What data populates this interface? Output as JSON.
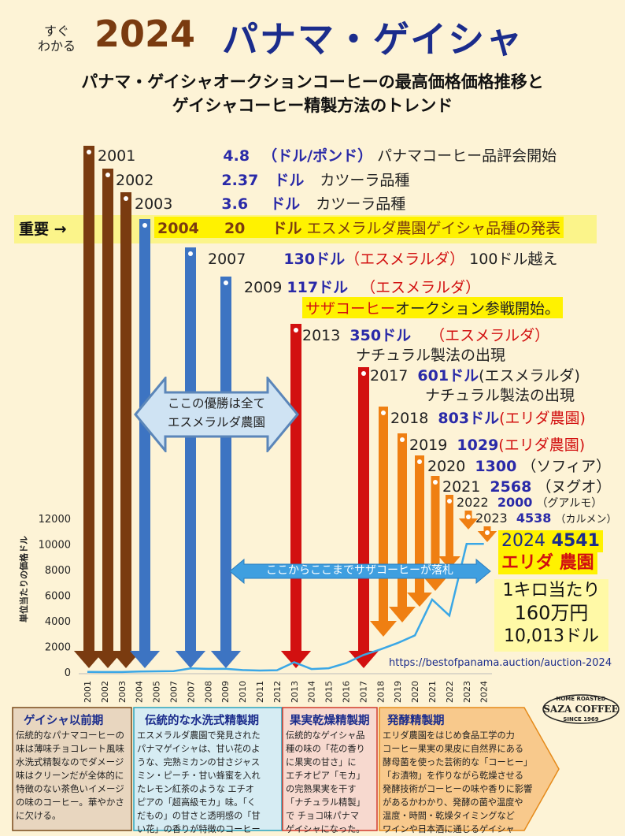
{
  "header": {
    "tagline_top": "すぐ",
    "tagline_bottom": "わかる",
    "year": "2024",
    "name": "パナマ・ゲイシャ",
    "subtitle_line1": "パナマ・ゲイシャオークションコーヒーの最高価格価格推移と",
    "subtitle_line2": "ゲイシャコーヒー精製方法のトレンド"
  },
  "important_label": "重要 →",
  "events": [
    {
      "year": "2001",
      "price": "4.8",
      "unit": "（ドル/ポンド）",
      "note": "パナマコーヒー品評会開始"
    },
    {
      "year": "2002",
      "price": "2.37",
      "unit": "ドル",
      "note": "カツーラ品種"
    },
    {
      "year": "2003",
      "price": "3.6",
      "unit": "ドル",
      "note": "カツーラ品種"
    },
    {
      "year": "2004",
      "price": "20",
      "unit": "ドル",
      "note": "エスメラルダ農園ゲイシャ品種の発表"
    },
    {
      "year": "2007",
      "price": "130ドル",
      "note_red": "（エスメラルダ）",
      "note": "100ドル越え"
    },
    {
      "year": "2009",
      "price": "117ドル",
      "note_red": "（エスメラルダ）"
    },
    {
      "year": "2013",
      "price": "350ドル",
      "note_red": "（エスメラルダ）",
      "note2": "ナチュラル製法の出現"
    },
    {
      "year": "2017",
      "price": "601ドル",
      "note": "(エスメラルダ)",
      "note2": "ナチュラル製法の出現"
    },
    {
      "year": "2018",
      "price": "803ドル",
      "note_red": "(エリダ農園)"
    },
    {
      "year": "2019",
      "price": "1029",
      "note_red": "(エリダ農園)"
    },
    {
      "year": "2020",
      "price": "1300",
      "note": "（ソフィア）"
    },
    {
      "year": "2021",
      "price": "2568",
      "note": "（ヌグオ）"
    },
    {
      "year": "2022",
      "price": "2000",
      "note": "（グアルモ）"
    },
    {
      "year": "2023",
      "price": "4538",
      "note": "（カルメン）"
    }
  ],
  "saza_start": {
    "name": "サザコーヒー",
    "rest": "オークション参戦開始。"
  },
  "winner_box": {
    "line1": "ここの優勝は全て",
    "line2": "エスメラルダ農園"
  },
  "saza_range": "ここからここまでサザコーヒーが落札",
  "final": {
    "year": "2024",
    "price": "4541",
    "farm": "エリダ 農園"
  },
  "per_kilo": {
    "line1": "1キロ当たり",
    "line2": "160万円",
    "line3": "10,013ドル"
  },
  "url": "https://bestofpanama.auction/auction-2024",
  "logo": {
    "top": "HOME ROASTED",
    "name": "SAZA COFFEE",
    "since": "SINCE 1969"
  },
  "periods": [
    {
      "title": "ゲイシャ以前期",
      "lines": [
        "伝統的なパナマコーヒーの",
        "味は薄味チョコレート風味",
        "水洗式精製なのでダメージ",
        "味はクリーンだが全体的に",
        "特徴のない茶色いイメージ",
        "の味のコーヒー。華やかさ",
        "に欠ける。"
      ],
      "color": "#e8d6bf"
    },
    {
      "title": "伝統的な水洗式精製期",
      "lines": [
        "エスメラルダ農園で発見された",
        "パナマゲイシャは、甘い花のよ",
        "うな、完熟ミカンの甘さジャス",
        "ミン・ピーチ・甘い蜂蜜を入れ",
        "たレモン紅茶のような エチオ",
        "ピアの「超高級モカ」味。「く",
        "だもの」の甘さと透明感の「甘",
        "い花」の香りが特徴のコーヒー"
      ],
      "color": "#d6ecf3"
    },
    {
      "title": "果実乾燥精製期",
      "lines": [
        "伝統的なゲイシャ品",
        "種の味の「花の香り",
        "に果実の甘さ」に",
        "エチオピア「モカ」",
        "の完熟果実を干す",
        "「ナチュラル精製」",
        "で チョコ味パナマ",
        "ゲイシャになった。"
      ],
      "color": "#f7d9cf"
    },
    {
      "title": "発酵精製期",
      "lines": [
        "エリダ農園をはじめ食品工学の力",
        "コーヒー果実の果皮に自然界にある",
        "酵母菌を使った芸術的な「コーヒー」",
        "「お漬物」を作りながら乾燥させる",
        "発酵技術がコーヒーの味や香りに影響",
        "があるかわかり、発酵の菌や温度や",
        "温度・時間・乾燥タイミングなど",
        "ワインや日本酒に通じるゲイシャ"
      ],
      "color": "#f8c98c"
    }
  ],
  "chart_data": {
    "type": "line",
    "ylabel": "単位当たりの価格ドル",
    "ylim": [
      0,
      12000
    ],
    "yticks": [
      0,
      2000,
      4000,
      6000,
      8000,
      10000,
      12000
    ],
    "categories": [
      "2001",
      "2002",
      "2003",
      "2004",
      "2005",
      "2007",
      "2007",
      "2008",
      "2009",
      "2010",
      "2011",
      "2012",
      "2013",
      "2014",
      "2015",
      "2016",
      "2017",
      "2018",
      "2019",
      "2020",
      "2021",
      "2022",
      "2023",
      "2024"
    ],
    "values": [
      10,
      5,
      8,
      45,
      60,
      80,
      290,
      250,
      260,
      160,
      120,
      150,
      770,
      240,
      300,
      700,
      1330,
      1770,
      2270,
      2870,
      5670,
      4410,
      10010,
      10010
    ]
  }
}
